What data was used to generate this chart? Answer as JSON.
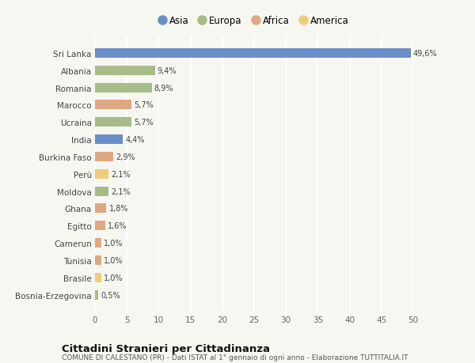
{
  "countries": [
    "Sri Lanka",
    "Albania",
    "Romania",
    "Marocco",
    "Ucraina",
    "India",
    "Burkina Faso",
    "Perù",
    "Moldova",
    "Ghana",
    "Egitto",
    "Camerun",
    "Tunisia",
    "Brasile",
    "Bosnia-Erzegovina"
  ],
  "values": [
    49.6,
    9.4,
    8.9,
    5.7,
    5.7,
    4.4,
    2.9,
    2.1,
    2.1,
    1.8,
    1.6,
    1.0,
    1.0,
    1.0,
    0.5
  ],
  "labels": [
    "49,6%",
    "9,4%",
    "8,9%",
    "5,7%",
    "5,7%",
    "4,4%",
    "2,9%",
    "2,1%",
    "2,1%",
    "1,8%",
    "1,6%",
    "1,0%",
    "1,0%",
    "1,0%",
    "0,5%"
  ],
  "continents": [
    "Asia",
    "Europa",
    "Europa",
    "Africa",
    "Europa",
    "Asia",
    "Africa",
    "America",
    "Europa",
    "Africa",
    "Africa",
    "Africa",
    "Africa",
    "America",
    "Europa"
  ],
  "continent_colors": {
    "Asia": "#6b8ec8",
    "Europa": "#a8bc8a",
    "Africa": "#e0a882",
    "America": "#f0cc7a"
  },
  "legend_order": [
    "Asia",
    "Europa",
    "Africa",
    "America"
  ],
  "title": "Cittadini Stranieri per Cittadinanza",
  "subtitle": "COMUNE DI CALESTANO (PR) - Dati ISTAT al 1° gennaio di ogni anno - Elaborazione TUTTITALIA.IT",
  "xlim": [
    0,
    50
  ],
  "xticks": [
    0,
    5,
    10,
    15,
    20,
    25,
    30,
    35,
    40,
    45,
    50
  ],
  "background_color": "#f7f7f2",
  "grid_color": "#ffffff",
  "bar_height": 0.55
}
